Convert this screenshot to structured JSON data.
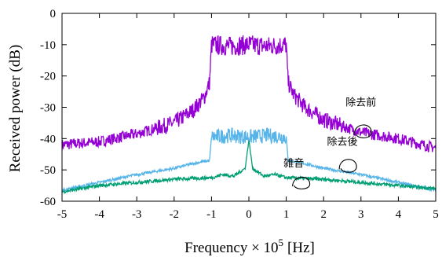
{
  "chart_data": {
    "type": "line",
    "title": "",
    "xlabel": "Frequency × 10",
    "xlabel_exponent": "5",
    "xlabel_unit": "[Hz]",
    "ylabel": "Received power (dB)",
    "xlim": [
      -5,
      5
    ],
    "ylim": [
      -60,
      0
    ],
    "x_ticks": [
      "-5",
      "-4",
      "-3",
      "-2",
      "-1",
      "0",
      "1",
      "2",
      "3",
      "4",
      "5"
    ],
    "y_ticks": [
      "0",
      "-10",
      "-20",
      "-30",
      "-40",
      "-50",
      "-60"
    ],
    "grid": false,
    "legend": "none",
    "series": [
      {
        "color": "#9400d3",
        "x": [
          -5,
          -4,
          -3,
          -2,
          -1.5,
          -1.2,
          -1.05,
          -1,
          -0.5,
          0,
          0.5,
          1,
          1.05,
          1.2,
          1.5,
          2,
          3,
          4,
          5
        ],
        "values": [
          -42,
          -41,
          -38.5,
          -35,
          -31,
          -27,
          -22,
          -10,
          -10.5,
          -10,
          -10.5,
          -10,
          -22,
          -26,
          -30,
          -34,
          -38,
          -40,
          -43
        ]
      },
      {
        "color": "#56b4e9",
        "x": [
          -5,
          -4,
          -3,
          -2,
          -1.5,
          -1.05,
          -1,
          -0.5,
          0,
          0.5,
          1,
          1.05,
          1.5,
          2,
          3,
          4,
          5
        ],
        "values": [
          -56.5,
          -54,
          -51.5,
          -49.5,
          -48,
          -47,
          -39.5,
          -39,
          -39.5,
          -39,
          -39.5,
          -47,
          -48,
          -49.5,
          -51.5,
          -54,
          -56.5
        ]
      },
      {
        "color": "#009e73",
        "x": [
          -5,
          -4,
          -3,
          -2,
          -1,
          -0.7,
          -0.4,
          -0.1,
          0,
          0.1,
          0.4,
          0.7,
          1,
          2,
          3,
          4,
          5
        ],
        "values": [
          -57,
          -55,
          -54,
          -53,
          -52.5,
          -51.5,
          -52,
          -49.5,
          -40.5,
          -49.5,
          -52,
          -51.5,
          -52.5,
          -53,
          -54,
          -55,
          -56
        ]
      }
    ],
    "annotations": [
      {
        "text": "除去前",
        "x": 3.0,
        "y": -29.5
      },
      {
        "text": "除去後",
        "x": 2.5,
        "y": -42
      },
      {
        "text": "雑音",
        "x": 1.2,
        "y": -49
      }
    ]
  }
}
